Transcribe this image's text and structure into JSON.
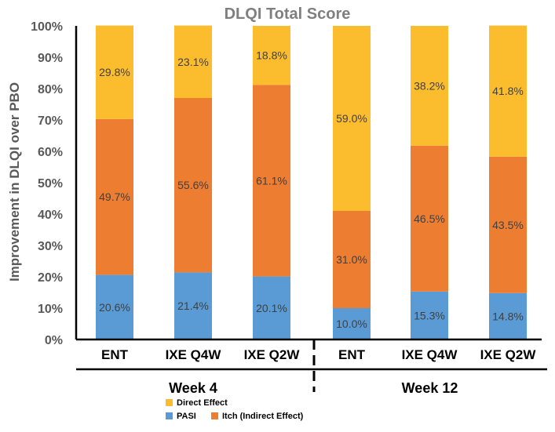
{
  "chart_data": {
    "type": "bar",
    "stacked": true,
    "title": "DLQI Total Score",
    "ylabel": "Improvement in DLQI over PBO",
    "ylim": [
      0,
      100
    ],
    "yticks": [
      "0%",
      "10%",
      "20%",
      "30%",
      "40%",
      "50%",
      "60%",
      "70%",
      "80%",
      "90%",
      "100%"
    ],
    "categories": [
      "ENT",
      "IXE Q4W",
      "IXE Q2W",
      "ENT",
      "IXE Q4W",
      "IXE Q2W"
    ],
    "groups": [
      {
        "label": "Week 4",
        "categories": [
          0,
          1,
          2
        ]
      },
      {
        "label": "Week 12",
        "categories": [
          3,
          4,
          5
        ]
      }
    ],
    "series": [
      {
        "name": "PASI",
        "color": "#5b9bd5",
        "values": [
          20.6,
          21.4,
          20.1,
          10.0,
          15.3,
          14.8
        ],
        "labels": [
          "20.6%",
          "21.4%",
          "20.1%",
          "10.0%",
          "15.3%",
          "14.8%"
        ]
      },
      {
        "name": "Itch (Indirect Effect)",
        "color": "#ed7d31",
        "values": [
          49.7,
          55.6,
          61.1,
          31.0,
          46.5,
          43.5
        ],
        "labels": [
          "49.7%",
          "55.6%",
          "61.1%",
          "31.0%",
          "46.5%",
          "43.5%"
        ]
      },
      {
        "name": "Direct Effect",
        "color": "#fbbd2e",
        "values": [
          29.8,
          23.1,
          18.8,
          59.0,
          38.2,
          41.8
        ],
        "labels": [
          "29.8%",
          "23.1%",
          "18.8%",
          "59.0%",
          "38.2%",
          "41.8%"
        ]
      }
    ],
    "legend_position": "bottom",
    "grid": false
  }
}
